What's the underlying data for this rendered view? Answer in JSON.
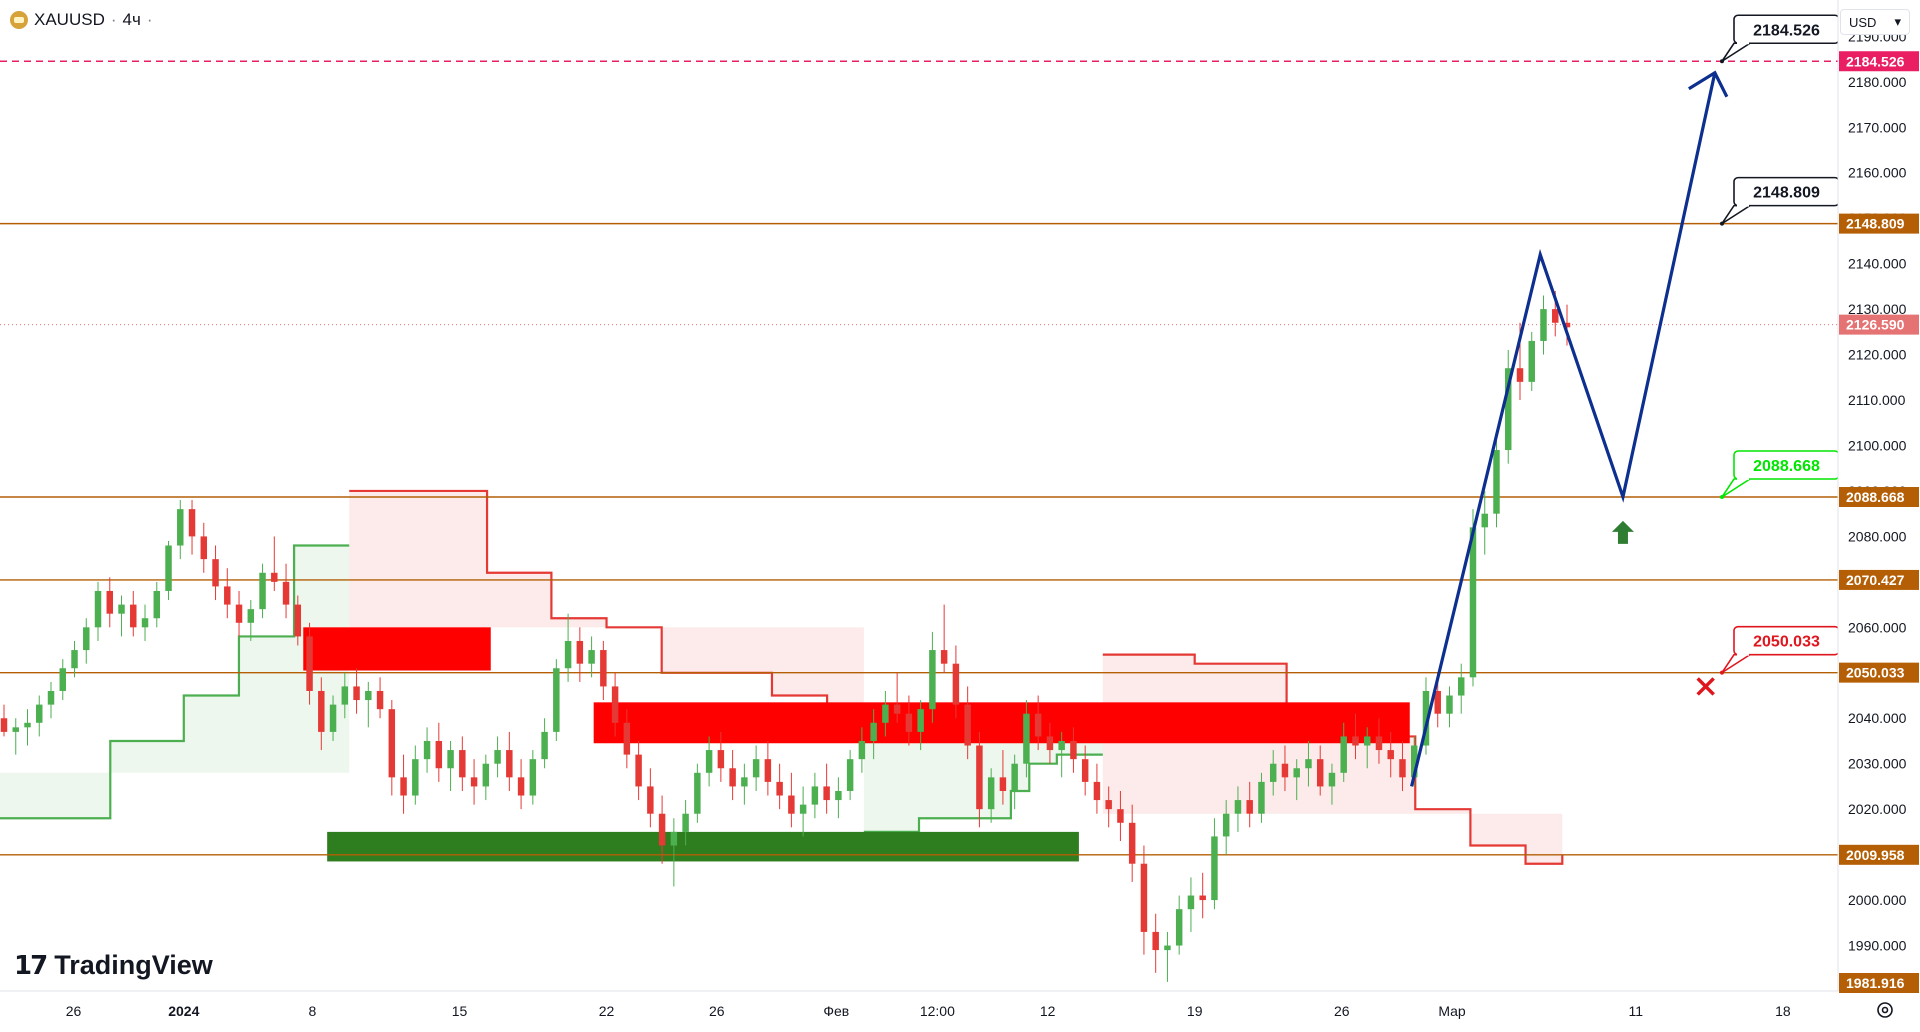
{
  "header": {
    "symbol": "XAUUSD",
    "separator": "·",
    "interval": "4ч"
  },
  "currency_select": {
    "value": "USD",
    "arrow": "▾"
  },
  "logo": {
    "mark": "17",
    "text": "TradingView"
  },
  "icons": {
    "coin": "gold-coin-icon",
    "settings": "gear-icon",
    "chevron": "chevron-down-icon"
  },
  "colors": {
    "bull": "#4caf50",
    "bear": "#e53935",
    "level": "#b45f06",
    "target": "#e91e63",
    "zigzag": "#0d2f8f",
    "up_trail": "#4caf50",
    "down_trail": "#e53935"
  },
  "chart_data": {
    "type": "candlestick",
    "ylim": [
      1980,
      2198
    ],
    "y_ticks": [
      1990,
      2000,
      2010,
      2020,
      2030,
      2040,
      2050,
      2060,
      2070,
      2080,
      2090,
      2100,
      2110,
      2120,
      2130,
      2140,
      2150,
      2160,
      2170,
      2180,
      2190
    ],
    "x_labels": [
      {
        "label": "26",
        "x": 0.04
      },
      {
        "label": "2024",
        "x": 0.1,
        "bold": true
      },
      {
        "label": "8",
        "x": 0.17
      },
      {
        "label": "15",
        "x": 0.25
      },
      {
        "label": "22",
        "x": 0.33
      },
      {
        "label": "26",
        "x": 0.39
      },
      {
        "label": "Фев",
        "x": 0.455
      },
      {
        "label": "12:00",
        "x": 0.51
      },
      {
        "label": "12",
        "x": 0.57
      },
      {
        "label": "19",
        "x": 0.65
      },
      {
        "label": "26",
        "x": 0.73
      },
      {
        "label": "Мар",
        "x": 0.79
      },
      {
        "label": "11",
        "x": 0.89
      },
      {
        "label": "18",
        "x": 0.97
      }
    ],
    "current_price": 2126.59,
    "current_price_label": "2126.590",
    "horizontal_levels": [
      {
        "value": 2148.809,
        "label": "2148.809",
        "callout": "2148.809",
        "callout_color": "#131722"
      },
      {
        "value": 2088.668,
        "label": "2088.668",
        "callout": "2088.668",
        "callout_color": "#00e600"
      },
      {
        "value": 2070.427,
        "label": "2070.427"
      },
      {
        "value": 2050.033,
        "label": "2050.033",
        "callout": "2050.033",
        "callout_color": "#e0161e"
      },
      {
        "value": 2009.958,
        "label": "2009.958"
      }
    ],
    "target_level": {
      "value": 2184.526,
      "label": "2184.526",
      "callout": "2184.526"
    },
    "low_label": {
      "value": 1981.916,
      "label": "1981.916"
    },
    "supply_zones": [
      {
        "x0": 0.165,
        "x1": 0.267,
        "y0": 2050.5,
        "y1": 2060
      },
      {
        "x0": 0.323,
        "x1": 0.767,
        "y0": 2034.5,
        "y1": 2043.5
      }
    ],
    "demand_zones": [
      {
        "x0": 0.178,
        "x1": 0.587,
        "y0": 2008.5,
        "y1": 2015
      }
    ],
    "zigzag": [
      {
        "x": 0.768,
        "y": 2025
      },
      {
        "x": 0.838,
        "y": 2142
      },
      {
        "x": 0.883,
        "y": 2088.7
      },
      {
        "x": 0.933,
        "y": 2182
      }
    ],
    "buy_arrow": {
      "x": 0.883,
      "y": 2081
    },
    "cross": {
      "x": 0.928,
      "y": 2047
    },
    "candles": [
      [
        2040,
        2043,
        2036,
        2037
      ],
      [
        2037,
        2040,
        2032,
        2038
      ],
      [
        2038,
        2042,
        2034,
        2039
      ],
      [
        2039,
        2045,
        2036,
        2043
      ],
      [
        2043,
        2048,
        2040,
        2046
      ],
      [
        2046,
        2053,
        2044,
        2051
      ],
      [
        2051,
        2057,
        2049,
        2055
      ],
      [
        2055,
        2062,
        2052,
        2060
      ],
      [
        2060,
        2070,
        2057,
        2068
      ],
      [
        2068,
        2071,
        2060,
        2063
      ],
      [
        2063,
        2067,
        2058,
        2065
      ],
      [
        2065,
        2068,
        2058,
        2060
      ],
      [
        2060,
        2065,
        2057,
        2062
      ],
      [
        2062,
        2070,
        2060,
        2068
      ],
      [
        2068,
        2079,
        2066,
        2078
      ],
      [
        2078,
        2088,
        2075,
        2086
      ],
      [
        2086,
        2088,
        2076,
        2080
      ],
      [
        2080,
        2083,
        2072,
        2075
      ],
      [
        2075,
        2078,
        2066,
        2069
      ],
      [
        2069,
        2073,
        2062,
        2065
      ],
      [
        2065,
        2068,
        2058,
        2061
      ],
      [
        2061,
        2066,
        2057,
        2064
      ],
      [
        2064,
        2074,
        2062,
        2072
      ],
      [
        2072,
        2080,
        2068,
        2070
      ],
      [
        2070,
        2074,
        2062,
        2065
      ],
      [
        2065,
        2067,
        2056,
        2058
      ],
      [
        2058,
        2061,
        2043,
        2046
      ],
      [
        2046,
        2049,
        2033,
        2037
      ],
      [
        2037,
        2045,
        2035,
        2043
      ],
      [
        2043,
        2050,
        2040,
        2047
      ],
      [
        2047,
        2051,
        2041,
        2044
      ],
      [
        2044,
        2048,
        2038,
        2046
      ],
      [
        2046,
        2049,
        2040,
        2042
      ],
      [
        2042,
        2044,
        2023,
        2027
      ],
      [
        2027,
        2032,
        2019,
        2023
      ],
      [
        2023,
        2034,
        2021,
        2031
      ],
      [
        2031,
        2038,
        2028,
        2035
      ],
      [
        2035,
        2039,
        2026,
        2029
      ],
      [
        2029,
        2035,
        2024,
        2033
      ],
      [
        2033,
        2036,
        2024,
        2027
      ],
      [
        2027,
        2031,
        2021,
        2025
      ],
      [
        2025,
        2032,
        2022,
        2030
      ],
      [
        2030,
        2036,
        2027,
        2033
      ],
      [
        2033,
        2037,
        2024,
        2027
      ],
      [
        2027,
        2031,
        2020,
        2023
      ],
      [
        2023,
        2033,
        2021,
        2031
      ],
      [
        2031,
        2040,
        2029,
        2037
      ],
      [
        2037,
        2053,
        2035,
        2051
      ],
      [
        2051,
        2063,
        2048,
        2057
      ],
      [
        2057,
        2060,
        2048,
        2052
      ],
      [
        2052,
        2058,
        2049,
        2055
      ],
      [
        2055,
        2057,
        2044,
        2047
      ],
      [
        2047,
        2050,
        2036,
        2039
      ],
      [
        2039,
        2042,
        2029,
        2032
      ],
      [
        2032,
        2035,
        2022,
        2025
      ],
      [
        2025,
        2029,
        2016,
        2019
      ],
      [
        2019,
        2023,
        2008,
        2012
      ],
      [
        2012,
        2018,
        2003,
        2015
      ],
      [
        2015,
        2022,
        2012,
        2019
      ],
      [
        2019,
        2030,
        2017,
        2028
      ],
      [
        2028,
        2036,
        2025,
        2033
      ],
      [
        2033,
        2037,
        2026,
        2029
      ],
      [
        2029,
        2033,
        2022,
        2025
      ],
      [
        2025,
        2030,
        2021,
        2027
      ],
      [
        2027,
        2034,
        2024,
        2031
      ],
      [
        2031,
        2035,
        2023,
        2026
      ],
      [
        2026,
        2030,
        2020,
        2023
      ],
      [
        2023,
        2028,
        2016,
        2019
      ],
      [
        2019,
        2025,
        2014,
        2021
      ],
      [
        2021,
        2028,
        2018,
        2025
      ],
      [
        2025,
        2030,
        2019,
        2022
      ],
      [
        2022,
        2027,
        2018,
        2024
      ],
      [
        2024,
        2033,
        2022,
        2031
      ],
      [
        2031,
        2038,
        2028,
        2035
      ],
      [
        2035,
        2042,
        2031,
        2039
      ],
      [
        2039,
        2046,
        2036,
        2043
      ],
      [
        2043,
        2050,
        2039,
        2041
      ],
      [
        2041,
        2045,
        2034,
        2037
      ],
      [
        2037,
        2044,
        2033,
        2042
      ],
      [
        2042,
        2059,
        2039,
        2055
      ],
      [
        2055,
        2065,
        2050,
        2052
      ],
      [
        2052,
        2056,
        2040,
        2043
      ],
      [
        2043,
        2047,
        2031,
        2034
      ],
      [
        2034,
        2037,
        2016,
        2020
      ],
      [
        2020,
        2029,
        2017,
        2027
      ],
      [
        2027,
        2033,
        2021,
        2024
      ],
      [
        2024,
        2032,
        2020,
        2030
      ],
      [
        2030,
        2044,
        2027,
        2041
      ],
      [
        2041,
        2045,
        2033,
        2036
      ],
      [
        2036,
        2039,
        2030,
        2033
      ],
      [
        2033,
        2037,
        2027,
        2035
      ],
      [
        2035,
        2038,
        2028,
        2031
      ],
      [
        2031,
        2034,
        2023,
        2026
      ],
      [
        2026,
        2030,
        2019,
        2022
      ],
      [
        2022,
        2025,
        2016,
        2020
      ],
      [
        2020,
        2024,
        2013,
        2017
      ],
      [
        2017,
        2021,
        2004,
        2008
      ],
      [
        2008,
        2012,
        1988,
        1993
      ],
      [
        1993,
        1997,
        1984,
        1989
      ],
      [
        1989,
        1993,
        1982,
        1990
      ],
      [
        1990,
        2001,
        1988,
        1998
      ],
      [
        1998,
        2005,
        1993,
        2001
      ],
      [
        2001,
        2006,
        1996,
        2000
      ],
      [
        2000,
        2018,
        1998,
        2014
      ],
      [
        2014,
        2022,
        2010,
        2019
      ],
      [
        2019,
        2025,
        2015,
        2022
      ],
      [
        2022,
        2026,
        2016,
        2019
      ],
      [
        2019,
        2028,
        2017,
        2026
      ],
      [
        2026,
        2033,
        2023,
        2030
      ],
      [
        2030,
        2034,
        2024,
        2027
      ],
      [
        2027,
        2031,
        2022,
        2029
      ],
      [
        2029,
        2035,
        2025,
        2031
      ],
      [
        2031,
        2034,
        2023,
        2025
      ],
      [
        2025,
        2030,
        2021,
        2028
      ],
      [
        2028,
        2039,
        2026,
        2036
      ],
      [
        2036,
        2041,
        2031,
        2034
      ],
      [
        2034,
        2038,
        2029,
        2036
      ],
      [
        2036,
        2040,
        2030,
        2033
      ],
      [
        2033,
        2037,
        2027,
        2031
      ],
      [
        2031,
        2035,
        2024,
        2027
      ],
      [
        2027,
        2036,
        2025,
        2034
      ],
      [
        2034,
        2049,
        2032,
        2046
      ],
      [
        2046,
        2050,
        2038,
        2041
      ],
      [
        2041,
        2047,
        2038,
        2045
      ],
      [
        2045,
        2052,
        2041,
        2049
      ],
      [
        2049,
        2086,
        2047,
        2082
      ],
      [
        2082,
        2090,
        2076,
        2085
      ],
      [
        2085,
        2102,
        2082,
        2099
      ],
      [
        2099,
        2121,
        2096,
        2117
      ],
      [
        2117,
        2127,
        2110,
        2114
      ],
      [
        2114,
        2125,
        2112,
        2123
      ],
      [
        2123,
        2133,
        2120,
        2130
      ],
      [
        2130,
        2134,
        2124,
        2127
      ],
      [
        2127,
        2131,
        2122,
        2126
      ]
    ],
    "trail_up_a": [
      [
        0.0,
        2018
      ],
      [
        0.04,
        2018
      ],
      [
        0.06,
        2035
      ],
      [
        0.1,
        2045
      ],
      [
        0.13,
        2058
      ],
      [
        0.16,
        2078
      ],
      [
        0.19,
        2078
      ]
    ],
    "trail_down_a": [
      [
        0.19,
        2090
      ],
      [
        0.225,
        2090
      ],
      [
        0.265,
        2072
      ],
      [
        0.3,
        2062
      ],
      [
        0.33,
        2060
      ],
      [
        0.36,
        2050
      ],
      [
        0.42,
        2045
      ],
      [
        0.45,
        2035
      ],
      [
        0.47,
        2035
      ]
    ],
    "trail_up_b": [
      [
        0.47,
        2015
      ],
      [
        0.5,
        2018
      ],
      [
        0.55,
        2024
      ],
      [
        0.56,
        2030
      ],
      [
        0.575,
        2032
      ],
      [
        0.6,
        2032
      ]
    ],
    "trail_down_b": [
      [
        0.6,
        2054
      ],
      [
        0.65,
        2052
      ],
      [
        0.7,
        2042
      ],
      [
        0.74,
        2036
      ],
      [
        0.77,
        2020
      ],
      [
        0.8,
        2012
      ],
      [
        0.83,
        2008
      ],
      [
        0.85,
        2010
      ]
    ]
  }
}
